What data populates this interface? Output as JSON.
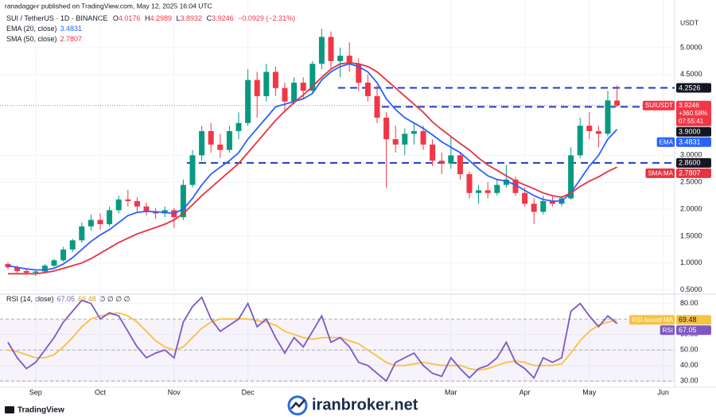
{
  "chart_data": {
    "type": "candlestick",
    "attribution": "ranadagger published on TradingView.com, May 12, 2025 16:04 UTC",
    "title": "SUI / TetherUS · 1D · BINANCE",
    "ohlc_labels": [
      "O",
      "H",
      "L",
      "C"
    ],
    "change": "−0.0929 (−2.31%)",
    "currency": "USDT",
    "up_color": "#089981",
    "down_color": "#f23645",
    "categories": [
      null,
      null,
      null,
      "Sep",
      null,
      null,
      null,
      null,
      null,
      null,
      "Oct",
      null,
      null,
      null,
      null,
      null,
      null,
      null,
      "Nov",
      null,
      null,
      null,
      null,
      null,
      null,
      null,
      "Dec",
      null,
      null,
      null,
      null,
      null,
      null,
      null,
      null,
      null,
      null,
      null,
      null,
      null,
      null,
      null,
      null,
      null,
      null,
      null,
      null,
      null,
      "Mar",
      null,
      null,
      null,
      null,
      null,
      null,
      null,
      "Apr",
      null,
      null,
      null,
      null,
      null,
      null,
      "May",
      null,
      null,
      null,
      null,
      null,
      null,
      null,
      "Jun"
    ],
    "candles": [
      [
        0.98,
        1.02,
        0.88,
        0.92
      ],
      [
        0.92,
        0.95,
        0.82,
        0.85
      ],
      [
        0.85,
        0.9,
        0.78,
        0.82
      ],
      [
        0.82,
        0.88,
        0.76,
        0.84
      ],
      [
        0.84,
        0.98,
        0.82,
        0.95
      ],
      [
        0.95,
        1.08,
        0.92,
        1.05
      ],
      [
        1.05,
        1.3,
        1.02,
        1.25
      ],
      [
        1.25,
        1.45,
        1.2,
        1.42
      ],
      [
        1.42,
        1.75,
        1.38,
        1.68
      ],
      [
        1.68,
        1.9,
        1.6,
        1.8
      ],
      [
        1.8,
        1.92,
        1.62,
        1.72
      ],
      [
        1.72,
        2.05,
        1.68,
        1.98
      ],
      [
        1.98,
        2.25,
        1.92,
        2.18
      ],
      [
        2.18,
        2.36,
        2.05,
        2.15
      ],
      [
        2.15,
        2.22,
        1.95,
        2.05
      ],
      [
        2.05,
        2.12,
        1.88,
        1.95
      ],
      [
        1.95,
        2.02,
        1.82,
        1.92
      ],
      [
        1.92,
        2.05,
        1.85,
        1.98
      ],
      [
        1.98,
        2.02,
        1.65,
        1.85
      ],
      [
        1.85,
        2.55,
        1.8,
        2.45
      ],
      [
        2.45,
        3.1,
        2.4,
        3.0
      ],
      [
        3.0,
        3.55,
        2.9,
        3.45
      ],
      [
        3.45,
        3.6,
        3.05,
        3.2
      ],
      [
        3.2,
        3.4,
        2.95,
        3.1
      ],
      [
        3.1,
        3.55,
        3.05,
        3.45
      ],
      [
        3.45,
        3.8,
        3.3,
        3.6
      ],
      [
        3.6,
        4.6,
        3.55,
        4.4
      ],
      [
        4.4,
        4.55,
        3.7,
        4.1
      ],
      [
        4.1,
        4.7,
        4.0,
        4.55
      ],
      [
        4.55,
        4.65,
        4.1,
        4.25
      ],
      [
        4.25,
        4.35,
        3.8,
        4.0
      ],
      [
        4.0,
        4.45,
        3.95,
        4.35
      ],
      [
        4.35,
        4.45,
        4.05,
        4.2
      ],
      [
        4.2,
        4.75,
        4.15,
        4.7
      ],
      [
        4.7,
        5.35,
        4.6,
        5.2
      ],
      [
        5.2,
        5.3,
        4.6,
        4.75
      ],
      [
        4.75,
        5.0,
        4.45,
        4.85
      ],
      [
        4.85,
        5.1,
        4.55,
        4.7
      ],
      [
        4.7,
        4.8,
        4.2,
        4.35
      ],
      [
        4.35,
        4.5,
        4.0,
        4.1
      ],
      [
        4.1,
        4.3,
        3.6,
        3.7
      ],
      [
        3.7,
        3.8,
        2.4,
        3.3
      ],
      [
        3.3,
        3.55,
        3.05,
        3.2
      ],
      [
        3.2,
        3.5,
        3.0,
        3.4
      ],
      [
        3.4,
        3.6,
        3.2,
        3.45
      ],
      [
        3.45,
        3.55,
        3.1,
        3.2
      ],
      [
        3.2,
        3.3,
        2.8,
        2.9
      ],
      [
        2.9,
        3.05,
        2.65,
        2.85
      ],
      [
        2.85,
        3.35,
        2.75,
        3.0
      ],
      [
        3.0,
        3.05,
        2.55,
        2.65
      ],
      [
        2.65,
        2.7,
        2.2,
        2.3
      ],
      [
        2.3,
        2.45,
        2.1,
        2.35
      ],
      [
        2.35,
        2.5,
        2.2,
        2.3
      ],
      [
        2.3,
        2.55,
        2.25,
        2.45
      ],
      [
        2.45,
        2.82,
        2.4,
        2.55
      ],
      [
        2.55,
        2.6,
        2.25,
        2.3
      ],
      [
        2.3,
        2.4,
        2.05,
        2.1
      ],
      [
        2.1,
        2.2,
        1.72,
        1.95
      ],
      [
        1.95,
        2.25,
        1.9,
        2.15
      ],
      [
        2.15,
        2.25,
        2.05,
        2.1
      ],
      [
        2.1,
        2.25,
        2.05,
        2.2
      ],
      [
        2.2,
        3.15,
        2.18,
        3.0
      ],
      [
        3.0,
        3.7,
        2.95,
        3.55
      ],
      [
        3.55,
        3.8,
        3.3,
        3.45
      ],
      [
        3.45,
        3.55,
        3.15,
        3.4
      ],
      [
        3.4,
        4.2,
        3.35,
        4.02
      ],
      [
        4.0176,
        4.2989,
        3.8932,
        3.9246
      ],
      null,
      null,
      null,
      null,
      null
    ],
    "series": [
      {
        "name": "EMA (20, close)",
        "tag": "EMA",
        "color": "#2962ff",
        "values": [
          0.95,
          0.92,
          0.89,
          0.87,
          0.87,
          0.9,
          0.98,
          1.1,
          1.25,
          1.4,
          1.52,
          1.62,
          1.75,
          1.88,
          1.94,
          1.96,
          1.95,
          1.94,
          1.92,
          2.0,
          2.2,
          2.45,
          2.65,
          2.78,
          2.9,
          3.05,
          3.3,
          3.5,
          3.7,
          3.9,
          3.95,
          4.0,
          4.05,
          4.15,
          4.4,
          4.55,
          4.65,
          4.7,
          4.65,
          4.55,
          4.35,
          4.05,
          3.85,
          3.7,
          3.6,
          3.5,
          3.38,
          3.25,
          3.15,
          3.05,
          2.9,
          2.75,
          2.62,
          2.55,
          2.52,
          2.45,
          2.35,
          2.25,
          2.18,
          2.15,
          2.15,
          2.3,
          2.55,
          2.8,
          3.0,
          3.3,
          3.4831,
          null,
          null,
          null,
          null,
          null
        ]
      },
      {
        "name": "SMA (50, close)",
        "tag": "SMA:MA",
        "color": "#e53340",
        "values": [
          0.8,
          0.8,
          0.8,
          0.8,
          0.82,
          0.85,
          0.9,
          0.95,
          1.0,
          1.08,
          1.18,
          1.28,
          1.38,
          1.46,
          1.54,
          1.6,
          1.66,
          1.72,
          1.8,
          1.92,
          2.08,
          2.25,
          2.4,
          2.55,
          2.7,
          2.85,
          3.05,
          3.25,
          3.45,
          3.65,
          3.82,
          3.98,
          4.12,
          4.28,
          4.45,
          4.6,
          4.7,
          4.72,
          4.7,
          4.65,
          4.55,
          4.4,
          4.25,
          4.1,
          3.95,
          3.8,
          3.62,
          3.48,
          3.35,
          3.22,
          3.1,
          2.95,
          2.82,
          2.72,
          2.62,
          2.52,
          2.45,
          2.38,
          2.3,
          2.25,
          2.22,
          2.3,
          2.42,
          2.52,
          2.6,
          2.7,
          2.7807,
          null,
          null,
          null,
          null,
          null
        ]
      }
    ],
    "ylim": [
      0.42,
      5.62
    ],
    "yticks": [
      {
        "value": 0.5,
        "label": "0.5000"
      },
      {
        "value": 1,
        "label": "1.0000"
      },
      {
        "value": 1.5,
        "label": "1.5000"
      },
      {
        "value": 2,
        "label": "2.0000"
      },
      {
        "value": 2.5,
        "label": "2.5000"
      },
      {
        "value": 3,
        "label": "3.0000"
      },
      {
        "value": 4.5,
        "label": "4.5000"
      },
      {
        "value": 5,
        "label": "5.0000"
      }
    ],
    "grid": true,
    "levels": [
      4.2526,
      {
        "value": 3.9,
        "label": "3.9000"
      },
      {
        "value": 2.86,
        "label": "2.8600"
      }
    ],
    "price_tag": {
      "symbol": "SUIUSDT",
      "value": 3.9246,
      "change": "+360.58%",
      "countdown": "07:55:41"
    },
    "rsi": {
      "title": "RSI (14, close)",
      "extra": "∅ ∅ ∅ ∅",
      "series": [
        {
          "name": "RSI",
          "color": "#7e57c2",
          "values": [
            55,
            45,
            38,
            42,
            50,
            58,
            68,
            75,
            82,
            80,
            70,
            74,
            72,
            62,
            52,
            45,
            48,
            50,
            45,
            68,
            78,
            84,
            70,
            62,
            66,
            70,
            80,
            65,
            70,
            58,
            48,
            58,
            52,
            62,
            72,
            55,
            58,
            52,
            42,
            40,
            35,
            30,
            42,
            45,
            48,
            40,
            35,
            33,
            45,
            38,
            32,
            38,
            40,
            45,
            55,
            42,
            38,
            32,
            45,
            42,
            45,
            75,
            80,
            72,
            65,
            72,
            67.05,
            null,
            null,
            null,
            null,
            null
          ]
        },
        {
          "name": "RSI-based MA",
          "color": "#f5c242",
          "values": [
            50,
            49,
            47,
            45,
            45,
            47,
            52,
            58,
            65,
            70,
            72,
            73,
            74,
            72,
            68,
            62,
            56,
            52,
            50,
            52,
            58,
            64,
            68,
            70,
            70,
            70,
            70,
            69,
            68,
            66,
            62,
            60,
            58,
            57,
            58,
            58,
            58,
            56,
            54,
            50,
            46,
            42,
            40,
            40,
            41,
            42,
            41,
            40,
            40,
            40,
            38,
            37,
            38,
            40,
            42,
            43,
            42,
            40,
            40,
            40,
            41,
            48,
            56,
            62,
            66,
            68,
            69.48,
            null,
            null,
            null,
            null,
            null
          ]
        }
      ],
      "ylim": [
        26,
        85
      ],
      "yticks": [
        {
          "value": 30,
          "label": "30.00"
        },
        {
          "value": 40,
          "label": "40.00"
        },
        {
          "value": 50,
          "label": "50.00"
        },
        {
          "value": 60,
          "label": "60.00"
        },
        {
          "value": 80,
          "label": "80.00"
        }
      ],
      "levels": [
        70,
        50,
        30
      ]
    }
  },
  "footer": {
    "brand": "TradingView",
    "watermark": "iranbroker.net"
  }
}
